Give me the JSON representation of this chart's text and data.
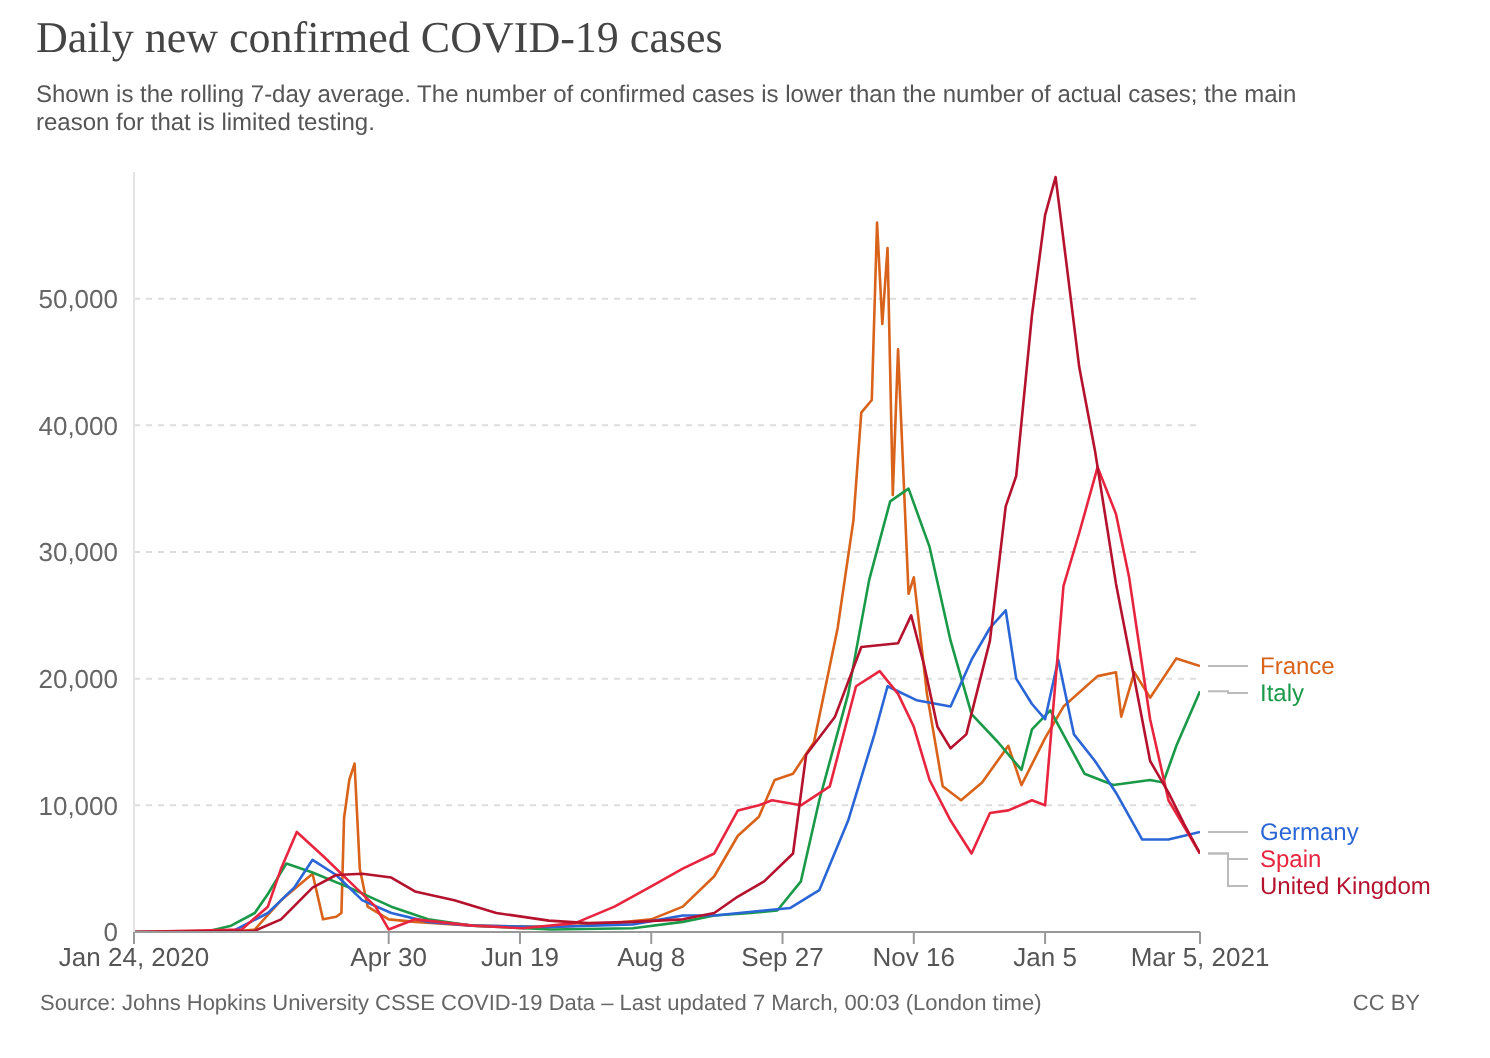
{
  "chart_data": {
    "type": "line",
    "title": "Daily new confirmed COVID-19 cases",
    "subtitle": "Shown is the rolling 7-day average. The number of confirmed cases is lower than the number of actual cases; the main reason for that is limited testing.",
    "annotations": [
      "Source: Johns Hopkins University CSSE COVID-19 Data – Last updated 7 March, 00:03 (London time)",
      "CC BY"
    ],
    "xlim": [
      "2020-01-24",
      "2021-03-05"
    ],
    "xticks": [
      {
        "value": "2020-01-24",
        "label": "Jan 24, 2020"
      },
      {
        "value": "2020-04-30",
        "label": "Apr 30"
      },
      {
        "value": "2020-06-19",
        "label": "Jun 19"
      },
      {
        "value": "2020-08-08",
        "label": "Aug 8"
      },
      {
        "value": "2020-09-27",
        "label": "Sep 27"
      },
      {
        "value": "2020-11-16",
        "label": "Nov 16"
      },
      {
        "value": "2021-01-05",
        "label": "Jan 5"
      },
      {
        "value": "2021-03-05",
        "label": "Mar 5, 2021"
      }
    ],
    "yticks": [
      0,
      {
        "value": 10000,
        "label": "10,000"
      },
      {
        "value": 20000,
        "label": "20,000"
      },
      {
        "value": 30000,
        "label": "30,000"
      },
      {
        "value": 40000,
        "label": "40,000"
      },
      {
        "value": 50000,
        "label": "50,000"
      }
    ],
    "ylim": [
      0,
      60000
    ],
    "grid": "y",
    "legend": "right",
    "series": [
      {
        "name": "France",
        "color": "#d9631a",
        "x": [
          "2020-01-24",
          "2020-03-01",
          "2020-03-10",
          "2020-03-20",
          "2020-04-01",
          "2020-04-05",
          "2020-04-10",
          "2020-04-12",
          "2020-04-13",
          "2020-04-15",
          "2020-04-17",
          "2020-04-19",
          "2020-04-22",
          "2020-04-30",
          "2020-05-10",
          "2020-06-01",
          "2020-07-01",
          "2020-07-20",
          "2020-08-08",
          "2020-08-20",
          "2020-09-01",
          "2020-09-10",
          "2020-09-18",
          "2020-09-24",
          "2020-10-01",
          "2020-10-09",
          "2020-10-18",
          "2020-10-24",
          "2020-10-27",
          "2020-10-31",
          "2020-11-02",
          "2020-11-04",
          "2020-11-06",
          "2020-11-08",
          "2020-11-10",
          "2020-11-14",
          "2020-11-16",
          "2020-11-21",
          "2020-11-27",
          "2020-12-04",
          "2020-12-12",
          "2020-12-22",
          "2020-12-27",
          "2021-01-05",
          "2021-01-12",
          "2021-01-25",
          "2021-02-01",
          "2021-02-03",
          "2021-02-08",
          "2021-02-14",
          "2021-02-24",
          "2021-03-05"
        ],
        "values": [
          0,
          0,
          200,
          2500,
          4600,
          1000,
          1200,
          1500,
          9000,
          12000,
          13300,
          5000,
          2000,
          1000,
          800,
          500,
          400,
          600,
          1000,
          2000,
          4400,
          7600,
          9100,
          12000,
          12500,
          15000,
          24000,
          32500,
          41000,
          42000,
          56000,
          48000,
          54000,
          34500,
          46000,
          26700,
          28000,
          18800,
          11500,
          10400,
          11800,
          14700,
          11600,
          15300,
          17800,
          20200,
          20500,
          17000,
          20500,
          18500,
          21600,
          21000
        ]
      },
      {
        "name": "Italy",
        "color": "#1a9a48",
        "x": [
          "2020-01-24",
          "2020-02-20",
          "2020-03-01",
          "2020-03-10",
          "2020-03-15",
          "2020-03-22",
          "2020-04-01",
          "2020-04-15",
          "2020-05-01",
          "2020-05-15",
          "2020-06-01",
          "2020-07-01",
          "2020-08-01",
          "2020-08-20",
          "2020-09-01",
          "2020-09-15",
          "2020-09-25",
          "2020-10-04",
          "2020-10-11",
          "2020-10-22",
          "2020-10-30",
          "2020-11-07",
          "2020-11-14",
          "2020-11-22",
          "2020-11-30",
          "2020-12-08",
          "2020-12-18",
          "2020-12-27",
          "2020-12-31",
          "2021-01-07",
          "2021-01-20",
          "2021-01-31",
          "2021-02-14",
          "2021-02-19",
          "2021-02-24",
          "2021-03-05"
        ],
        "values": [
          0,
          0,
          500,
          1500,
          3000,
          5400,
          4700,
          3500,
          2000,
          1000,
          500,
          200,
          300,
          800,
          1300,
          1500,
          1700,
          4000,
          10400,
          18800,
          27800,
          34000,
          35000,
          30400,
          23000,
          17200,
          15000,
          12800,
          16000,
          17500,
          12500,
          11600,
          12000,
          11800,
          14700,
          19000
        ]
      },
      {
        "name": "Germany",
        "color": "#2a66d6",
        "x": [
          "2020-01-24",
          "2020-03-01",
          "2020-03-15",
          "2020-03-25",
          "2020-04-01",
          "2020-04-10",
          "2020-04-20",
          "2020-05-01",
          "2020-05-15",
          "2020-06-01",
          "2020-07-01",
          "2020-08-01",
          "2020-08-20",
          "2020-09-01",
          "2020-09-20",
          "2020-09-30",
          "2020-10-11",
          "2020-10-22",
          "2020-11-01",
          "2020-11-06",
          "2020-11-17",
          "2020-11-30",
          "2020-12-08",
          "2020-12-15",
          "2020-12-21",
          "2020-12-25",
          "2020-12-31",
          "2021-01-05",
          "2021-01-10",
          "2021-01-16",
          "2021-01-24",
          "2021-02-01",
          "2021-02-11",
          "2021-02-21",
          "2021-03-05"
        ],
        "values": [
          0,
          0,
          1500,
          3500,
          5700,
          4500,
          2500,
          1500,
          800,
          500,
          400,
          600,
          1300,
          1300,
          1700,
          1900,
          3300,
          8800,
          15600,
          19400,
          18300,
          17800,
          21500,
          24000,
          25400,
          20000,
          18000,
          16800,
          21500,
          15600,
          13500,
          11000,
          7300,
          7300,
          7900
        ]
      },
      {
        "name": "Spain",
        "color": "#e8253f",
        "x": [
          "2020-01-24",
          "2020-03-05",
          "2020-03-15",
          "2020-03-20",
          "2020-03-26",
          "2020-04-05",
          "2020-04-15",
          "2020-04-25",
          "2020-04-30",
          "2020-05-10",
          "2020-06-01",
          "2020-06-20",
          "2020-07-10",
          "2020-07-25",
          "2020-08-08",
          "2020-08-20",
          "2020-09-01",
          "2020-09-10",
          "2020-09-18",
          "2020-09-23",
          "2020-10-04",
          "2020-10-15",
          "2020-10-25",
          "2020-11-03",
          "2020-11-10",
          "2020-11-16",
          "2020-11-22",
          "2020-11-30",
          "2020-12-08",
          "2020-12-15",
          "2020-12-22",
          "2020-12-31",
          "2021-01-05",
          "2021-01-12",
          "2021-01-18",
          "2021-01-25",
          "2021-02-01",
          "2021-02-06",
          "2021-02-14",
          "2021-02-21",
          "2021-03-05"
        ],
        "values": [
          0,
          200,
          2000,
          5000,
          7900,
          6000,
          4000,
          2000,
          200,
          1000,
          500,
          300,
          700,
          2000,
          3600,
          5000,
          6200,
          9600,
          10000,
          10400,
          10000,
          11500,
          19400,
          20600,
          18800,
          16200,
          12000,
          8800,
          6200,
          9400,
          9600,
          10400,
          10000,
          27300,
          31500,
          36700,
          33000,
          28000,
          16800,
          10400,
          6200
        ]
      },
      {
        "name": "United Kingdom",
        "color": "#b5122e",
        "x": [
          "2020-01-24",
          "2020-03-10",
          "2020-03-20",
          "2020-04-01",
          "2020-04-10",
          "2020-04-20",
          "2020-05-01",
          "2020-05-10",
          "2020-05-25",
          "2020-06-10",
          "2020-06-30",
          "2020-07-15",
          "2020-08-01",
          "2020-08-20",
          "2020-09-01",
          "2020-09-10",
          "2020-09-20",
          "2020-10-01",
          "2020-10-06",
          "2020-10-17",
          "2020-10-27",
          "2020-11-10",
          "2020-11-15",
          "2020-11-20",
          "2020-11-25",
          "2020-11-30",
          "2020-12-06",
          "2020-12-15",
          "2020-12-21",
          "2020-12-25",
          "2020-12-31",
          "2021-01-05",
          "2021-01-09",
          "2021-01-13",
          "2021-01-18",
          "2021-01-24",
          "2021-02-01",
          "2021-02-08",
          "2021-02-14",
          "2021-02-21",
          "2021-02-27",
          "2021-03-05"
        ],
        "values": [
          0,
          100,
          1000,
          3500,
          4500,
          4600,
          4300,
          3200,
          2500,
          1500,
          900,
          700,
          800,
          1000,
          1500,
          2800,
          4000,
          6200,
          14000,
          17000,
          22500,
          22800,
          25000,
          21000,
          16200,
          14500,
          15600,
          23000,
          33600,
          36000,
          48700,
          56600,
          59600,
          53000,
          44600,
          38000,
          27500,
          20000,
          13500,
          11000,
          8500,
          6200
        ]
      }
    ]
  }
}
